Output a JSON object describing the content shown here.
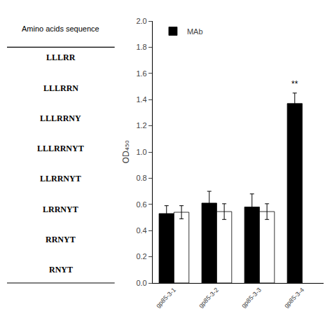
{
  "chart_data": {
    "type": "bar",
    "table_header": "Amino acids sequence",
    "table_rows": [
      "LLLRR",
      "LLLRRN",
      "LLLRRNY",
      "LLLRRNYT",
      "LLRRNYT",
      "LRRNYT",
      "RRNYT",
      "RNYT"
    ],
    "categories": [
      "gp85-3-1",
      "gp85-3-2",
      "gp85-3-3",
      "gp85-3-4"
    ],
    "series": [
      {
        "name": "MAb",
        "color": "#000000",
        "values": [
          0.53,
          0.61,
          0.58,
          1.37
        ],
        "errors": [
          0.06,
          0.09,
          0.1,
          0.08
        ]
      },
      {
        "color": "#ffffff",
        "values": [
          0.54,
          0.545,
          0.545,
          null
        ],
        "errors": [
          0.05,
          0.06,
          0.06,
          null
        ]
      }
    ],
    "y_label": "OD₄₅₀",
    "annotations": [
      {
        "text": "**",
        "x": "gp85-3-4",
        "y": 1.47
      }
    ],
    "ylim": [
      0.0,
      2.0
    ],
    "yticks": [
      {
        "value": 0.0,
        "label": "0.0"
      },
      0.2,
      0.4,
      0.6,
      0.8,
      {
        "value": 1.0,
        "label": "1.0"
      },
      1.2,
      1.4,
      1.6,
      1.8,
      {
        "value": 2.0,
        "label": "2.0"
      }
    ],
    "grid": false,
    "legend": "upper left"
  }
}
